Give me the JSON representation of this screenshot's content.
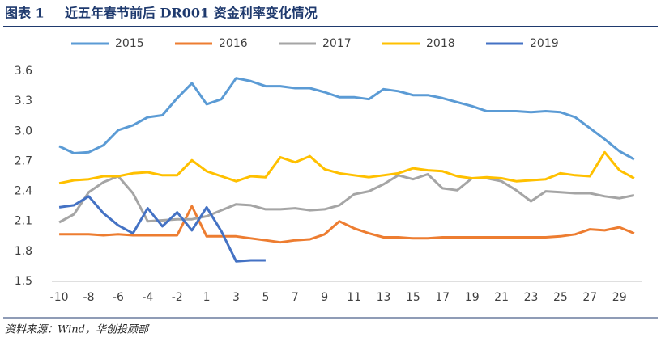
{
  "chart_data": {
    "type": "line",
    "figure_label": "图表 1",
    "title": "近五年春节前后 DR001 资金利率变化情况",
    "source": "资料来源：Wind，华创投顾部",
    "categories": [
      "-10",
      null,
      "-8",
      null,
      "-6",
      null,
      "-4",
      null,
      "-2",
      null,
      "1",
      null,
      "3",
      null,
      "5",
      null,
      "7",
      null,
      "9",
      null,
      "11",
      null,
      "13",
      null,
      "15",
      null,
      "17",
      null,
      "19",
      null,
      "21",
      null,
      "23",
      null,
      "25",
      null,
      "27",
      null,
      "29",
      null
    ],
    "ylim": [
      1.5,
      3.6
    ],
    "yticks": [
      1.5,
      1.8,
      2.1,
      2.4,
      2.7,
      {
        "value": 3,
        "label": "3.0"
      },
      3.3,
      3.6
    ],
    "grid": false,
    "legend": "top",
    "series": [
      {
        "name": "2015",
        "color": "#5b9bd5",
        "values": [
          2.85,
          2.78,
          2.79,
          2.86,
          3.01,
          3.06,
          3.14,
          3.16,
          3.33,
          3.48,
          3.27,
          3.32,
          3.53,
          3.5,
          3.45,
          3.45,
          3.43,
          3.43,
          3.39,
          3.34,
          3.34,
          3.32,
          3.42,
          3.4,
          3.36,
          3.36,
          3.33,
          3.29,
          3.25,
          3.2,
          3.2,
          3.2,
          3.19,
          3.2,
          3.19,
          3.14,
          3.03,
          2.92,
          2.8,
          2.72
        ]
      },
      {
        "name": "2016",
        "color": "#ed7d31",
        "values": [
          1.97,
          1.97,
          1.97,
          1.96,
          1.97,
          1.96,
          1.96,
          1.96,
          1.96,
          2.25,
          1.95,
          1.95,
          1.95,
          1.93,
          1.91,
          1.89,
          1.91,
          1.92,
          1.97,
          2.1,
          2.03,
          1.98,
          1.94,
          1.94,
          1.93,
          1.93,
          1.94,
          1.94,
          1.94,
          1.94,
          1.94,
          1.94,
          1.94,
          1.94,
          1.95,
          1.97,
          2.02,
          2.01,
          2.04,
          1.98
        ]
      },
      {
        "name": "2017",
        "color": "#a5a5a5",
        "values": [
          2.09,
          2.17,
          2.39,
          2.49,
          2.55,
          2.38,
          2.1,
          2.11,
          2.12,
          2.12,
          2.15,
          2.21,
          2.27,
          2.26,
          2.22,
          2.22,
          2.23,
          2.21,
          2.22,
          2.26,
          2.37,
          2.4,
          2.47,
          2.56,
          2.52,
          2.57,
          2.43,
          2.41,
          2.53,
          2.53,
          2.5,
          2.41,
          2.3,
          2.4,
          2.39,
          2.38,
          2.38,
          2.35,
          2.33,
          2.36
        ]
      },
      {
        "name": "2018",
        "color": "#ffc000",
        "values": [
          2.48,
          2.51,
          2.52,
          2.55,
          2.55,
          2.58,
          2.59,
          2.56,
          2.56,
          2.71,
          2.6,
          2.55,
          2.5,
          2.55,
          2.54,
          2.74,
          2.69,
          2.75,
          2.62,
          2.58,
          2.56,
          2.54,
          2.56,
          2.58,
          2.63,
          2.61,
          2.6,
          2.55,
          2.53,
          2.54,
          2.53,
          2.5,
          2.51,
          2.52,
          2.58,
          2.56,
          2.55,
          2.79,
          2.61,
          2.53
        ]
      },
      {
        "name": "2019",
        "color": "#4472c4",
        "values": [
          2.24,
          2.26,
          2.35,
          2.18,
          2.06,
          1.98,
          2.23,
          2.05,
          2.19,
          2.01,
          2.24,
          2.0,
          1.7,
          1.71,
          1.71,
          null,
          null,
          null,
          null,
          null,
          null,
          null,
          null,
          null,
          null,
          null,
          null,
          null,
          null,
          null,
          null,
          null,
          null,
          null,
          null,
          null,
          null,
          null,
          null,
          null
        ]
      }
    ]
  }
}
